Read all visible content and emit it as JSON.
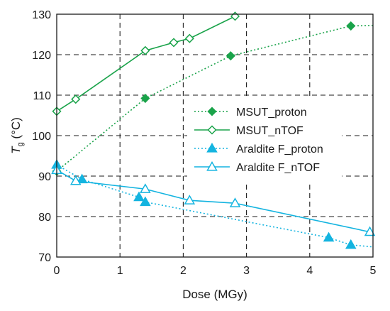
{
  "chart_data": {
    "type": "line",
    "xlabel": "Dose (MGy)",
    "ylabel": {
      "main": "T",
      "subscript": "g",
      "unit": " (°C)"
    },
    "xlim": [
      0,
      5
    ],
    "ylim": [
      70,
      130
    ],
    "xticks": [
      0,
      1,
      2,
      3,
      4,
      5
    ],
    "yticks": [
      70,
      80,
      90,
      100,
      110,
      120,
      130
    ],
    "grid": "dashed",
    "legend_position": "center-right",
    "series": [
      {
        "name": "MSUT_proton",
        "color": "#1aa34a",
        "line": "dotted",
        "marker": "filled-diamond",
        "x": [
          0,
          1.4,
          2.75,
          4.65,
          5.0
        ],
        "y": [
          91.2,
          109.2,
          119.7,
          127.1,
          127.2
        ],
        "marker_count": 4
      },
      {
        "name": "MSUT_nTOF",
        "color": "#1aa34a",
        "line": "solid",
        "marker": "open-diamond",
        "x": [
          0,
          0.3,
          1.4,
          1.85,
          2.1,
          2.82
        ],
        "y": [
          106,
          109,
          121,
          123,
          124,
          129.5
        ],
        "marker_count": 6
      },
      {
        "name": "Araldite F_proton",
        "color": "#14b4e0",
        "line": "dotted",
        "marker": "filled-triangle",
        "x": [
          0,
          0.4,
          1.3,
          1.4,
          4.3,
          4.65,
          5.0
        ],
        "y": [
          92.8,
          89.2,
          84.8,
          83.6,
          74.8,
          73.0,
          72.5
        ],
        "marker_count": 6
      },
      {
        "name": "Araldite F_nTOF",
        "color": "#14b4e0",
        "line": "solid",
        "marker": "open-triangle",
        "x": [
          0,
          0.3,
          1.4,
          2.1,
          2.82,
          4.95
        ],
        "y": [
          91.5,
          88.8,
          86.8,
          84.0,
          83.3,
          76.2
        ],
        "marker_count": 6
      }
    ]
  }
}
